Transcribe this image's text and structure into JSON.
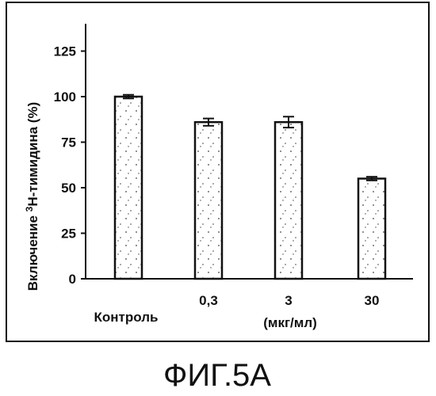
{
  "chart_data": {
    "type": "bar",
    "categories": [
      "Контроль",
      "0,3",
      "3",
      "30"
    ],
    "values": [
      100,
      86,
      86,
      55
    ],
    "errors": [
      1,
      2,
      3,
      1
    ],
    "ylim": [
      0,
      140
    ],
    "yticks": [
      "0",
      "25",
      "50",
      "75",
      "100",
      "125"
    ],
    "ylabel_prefix": "Включение ",
    "ylabel_sup": "3",
    "ylabel_suffix": "H-тимидина (%)",
    "unit_label": "(мкг/мл)",
    "caption": "ФИГ.5А",
    "grid": false,
    "bar_fill": "#ffffff",
    "bar_stipple": "#444444"
  }
}
